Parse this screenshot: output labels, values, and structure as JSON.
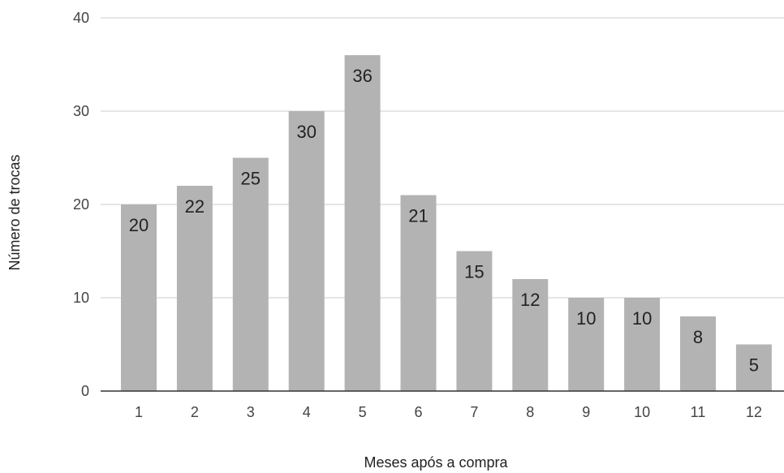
{
  "chart_data": {
    "type": "bar",
    "categories": [
      "1",
      "2",
      "3",
      "4",
      "5",
      "6",
      "7",
      "8",
      "9",
      "10",
      "11",
      "12"
    ],
    "values": [
      20,
      22,
      25,
      30,
      36,
      21,
      15,
      12,
      10,
      10,
      8,
      5
    ],
    "title": "",
    "xlabel": "Meses após a compra",
    "ylabel": "Número de trocas",
    "ylim": [
      0,
      40
    ],
    "yticks": [
      0,
      10,
      20,
      30,
      40
    ],
    "grid": true,
    "legend": "none",
    "bar_color": "#b3b3b3",
    "grid_color": "#cccccc",
    "axis_color": "#333333",
    "data_labels": "inside-top"
  }
}
